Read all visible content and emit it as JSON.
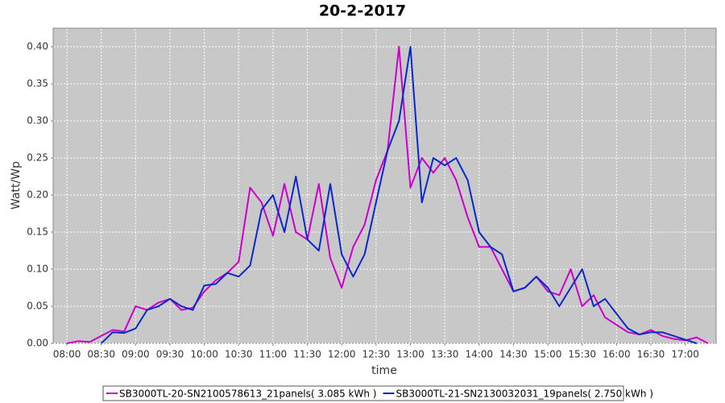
{
  "chart_data": {
    "type": "line",
    "title": "20-2-2017",
    "x_label": "time",
    "y_label": "Watt/Wp",
    "x": [
      "08:00",
      "08:10",
      "08:20",
      "08:30",
      "08:40",
      "08:50",
      "09:00",
      "09:10",
      "09:20",
      "09:30",
      "09:40",
      "09:50",
      "10:00",
      "10:10",
      "10:20",
      "10:30",
      "10:40",
      "10:50",
      "11:00",
      "11:10",
      "11:20",
      "11:30",
      "11:40",
      "11:50",
      "12:00",
      "12:10",
      "12:20",
      "12:30",
      "12:40",
      "12:50",
      "13:00",
      "13:10",
      "13:20",
      "13:30",
      "13:40",
      "13:50",
      "14:00",
      "14:10",
      "14:20",
      "14:30",
      "14:40",
      "14:50",
      "15:00",
      "15:10",
      "15:20",
      "15:30",
      "15:40",
      "15:50",
      "16:00",
      "16:10",
      "16:20",
      "16:30",
      "16:40",
      "16:50",
      "17:00",
      "17:10",
      "17:20"
    ],
    "series": [
      {
        "name": "SB3000TL-20-SN2100578613_21panels( 3.085 kWh )",
        "color": "#cc00cc",
        "values": [
          0,
          0.003,
          0.002,
          0.01,
          0.018,
          0.016,
          0.05,
          0.045,
          0.055,
          0.06,
          0.045,
          0.048,
          0.07,
          0.085,
          0.095,
          0.11,
          0.21,
          0.19,
          0.145,
          0.215,
          0.15,
          0.14,
          0.215,
          0.115,
          0.075,
          0.13,
          0.16,
          0.22,
          0.26,
          0.4,
          0.21,
          0.25,
          0.23,
          0.25,
          0.22,
          0.17,
          0.13,
          0.13,
          0.1,
          0.07,
          0.075,
          0.09,
          0.07,
          0.065,
          0.1,
          0.05,
          0.065,
          0.035,
          0.025,
          0.015,
          0.012,
          0.018,
          0.01,
          0.006,
          0.004,
          0.008,
          0
        ]
      },
      {
        "name": "SB3000TL-21-SN2130032031_19panels( 2.750 kWh )",
        "color": "#0a28c8",
        "values": [
          null,
          null,
          null,
          0,
          0.015,
          0.014,
          0.02,
          0.045,
          0.05,
          0.06,
          0.05,
          0.045,
          0.078,
          0.08,
          0.095,
          0.09,
          0.105,
          0.18,
          0.2,
          0.15,
          0.225,
          0.14,
          0.125,
          0.215,
          0.12,
          0.09,
          0.12,
          0.19,
          0.26,
          0.3,
          0.4,
          0.19,
          0.25,
          0.24,
          0.25,
          0.22,
          0.15,
          0.13,
          0.12,
          0.07,
          0.075,
          0.09,
          0.075,
          0.05,
          0.075,
          0.1,
          0.05,
          0.06,
          0.04,
          0.02,
          0.012,
          0.015,
          0.015,
          0.01,
          0.005,
          0,
          null
        ]
      }
    ],
    "xlim": [
      "07:48",
      "17:27"
    ],
    "xticks": [
      "08:00",
      "08:30",
      "09:00",
      "09:30",
      "10:00",
      "10:30",
      "11:00",
      "11:30",
      "12:00",
      "12:30",
      "13:00",
      "13:30",
      "14:00",
      "14:30",
      "15:00",
      "15:30",
      "16:00",
      "16:30",
      "17:00"
    ],
    "ylim": [
      0,
      0.425
    ],
    "yticks": [
      {
        "value": 0,
        "label": "0.00"
      },
      {
        "value": 0.05,
        "label": "0.05"
      },
      {
        "value": 0.1,
        "label": "0.10"
      },
      {
        "value": 0.15,
        "label": "0.15"
      },
      {
        "value": 0.2,
        "label": "0.20"
      },
      {
        "value": 0.25,
        "label": "0.25"
      },
      {
        "value": 0.3,
        "label": "0.30"
      },
      {
        "value": 0.35,
        "label": "0.35"
      },
      {
        "value": 0.4,
        "label": "0.40"
      }
    ],
    "grid": true,
    "legend": "bottom"
  }
}
